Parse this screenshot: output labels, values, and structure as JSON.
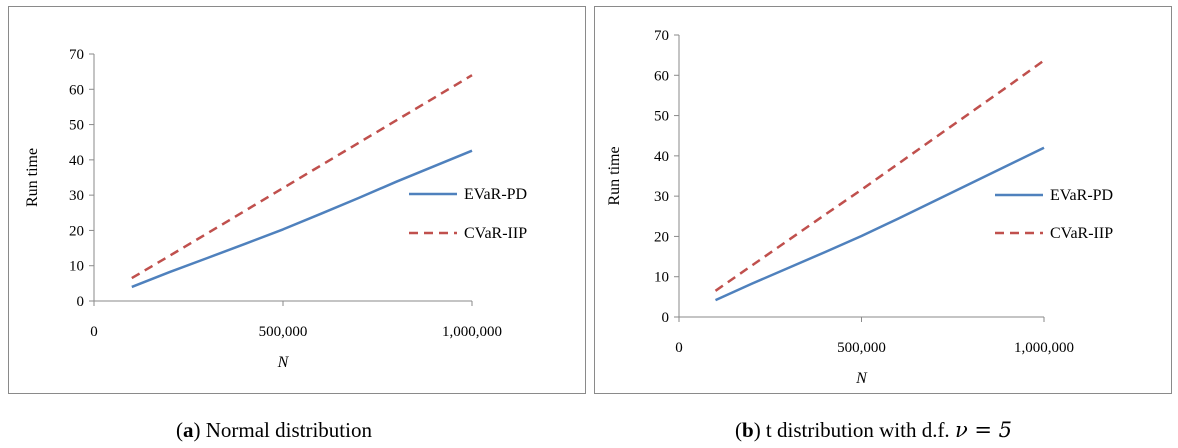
{
  "chart_data": [
    {
      "type": "line",
      "xlabel": "N",
      "ylabel": "Run time",
      "xlim": [
        0,
        1000000
      ],
      "ylim": [
        0,
        70
      ],
      "x_ticks": [
        "0",
        "500,000",
        "1,000,000"
      ],
      "y_ticks": [
        "0",
        "10",
        "20",
        "30",
        "40",
        "50",
        "60",
        "70"
      ],
      "grid": false,
      "legend_position": "right",
      "x": [
        100000,
        200000,
        300000,
        400000,
        500000,
        600000,
        700000,
        800000,
        900000,
        1000000
      ],
      "series": [
        {
          "name": "EVaR-PD",
          "color": "#4f81bd",
          "style": "solid",
          "values": [
            4.0,
            8.2,
            12.2,
            16.2,
            20.3,
            24.7,
            29.2,
            33.8,
            38.2,
            42.6
          ]
        },
        {
          "name": "CVaR-IIP",
          "color": "#c0504d",
          "style": "dashed",
          "values": [
            6.5,
            12.8,
            19.2,
            25.6,
            32.0,
            38.4,
            44.8,
            51.2,
            57.6,
            64.0
          ]
        }
      ],
      "caption_letter": "a",
      "caption_text": ") Normal distribution",
      "caption_open": "("
    },
    {
      "type": "line",
      "xlabel": "N",
      "ylabel": "Run time",
      "xlim": [
        0,
        1000000
      ],
      "ylim": [
        0,
        70
      ],
      "x_ticks": [
        "0",
        "500,000",
        "1,000,000"
      ],
      "y_ticks": [
        "0",
        "10",
        "20",
        "30",
        "40",
        "50",
        "60",
        "70"
      ],
      "grid": false,
      "legend_position": "right",
      "x": [
        100000,
        200000,
        300000,
        400000,
        500000,
        600000,
        700000,
        800000,
        900000,
        1000000
      ],
      "series": [
        {
          "name": "EVaR-PD",
          "color": "#4f81bd",
          "style": "solid",
          "values": [
            4.2,
            8.3,
            12.2,
            16.1,
            20.1,
            24.4,
            28.8,
            33.2,
            37.6,
            42.0
          ]
        },
        {
          "name": "CVaR-IIP",
          "color": "#c0504d",
          "style": "dashed",
          "values": [
            6.5,
            12.8,
            19.1,
            25.4,
            31.6,
            38.0,
            44.4,
            50.8,
            57.2,
            63.7
          ]
        }
      ],
      "caption_letter": "b",
      "caption_text": ") t distribution with d.f. ",
      "caption_open": "(",
      "caption_math": "ν = 5"
    }
  ]
}
